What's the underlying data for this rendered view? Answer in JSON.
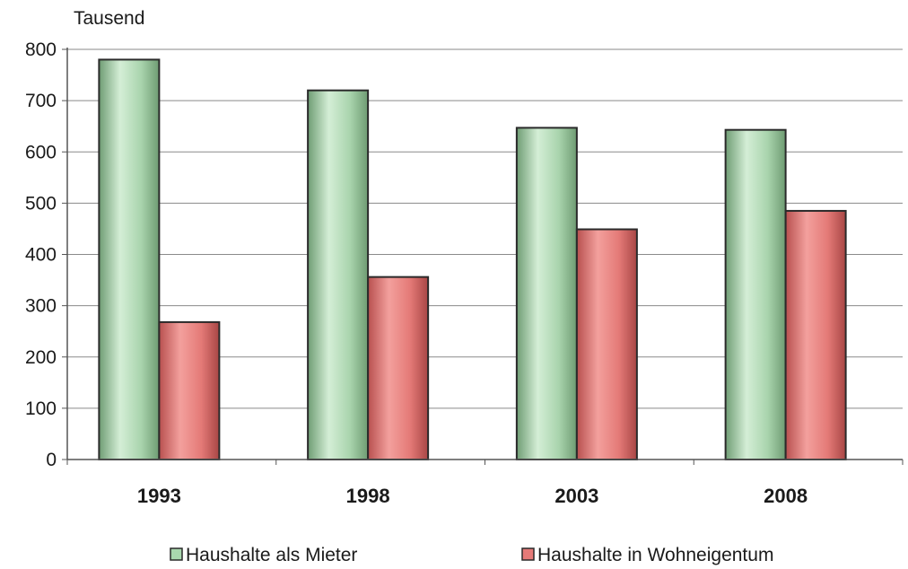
{
  "chart_data": {
    "type": "bar",
    "unit_label": "Tausend",
    "categories": [
      "1993",
      "1998",
      "2003",
      "2008"
    ],
    "series": [
      {
        "name": "Haushalte als Mieter",
        "values": [
          780,
          720,
          647,
          643
        ],
        "color": "#a9d7ae"
      },
      {
        "name": "Haushalte in Wohneigentum",
        "values": [
          268,
          356,
          449,
          485
        ],
        "color": "#e57a78"
      }
    ],
    "ylim": [
      0,
      800
    ],
    "yticks": [
      0,
      100,
      200,
      300,
      400,
      500,
      600,
      700,
      800
    ],
    "grid": true,
    "legend_position": "bottom"
  }
}
